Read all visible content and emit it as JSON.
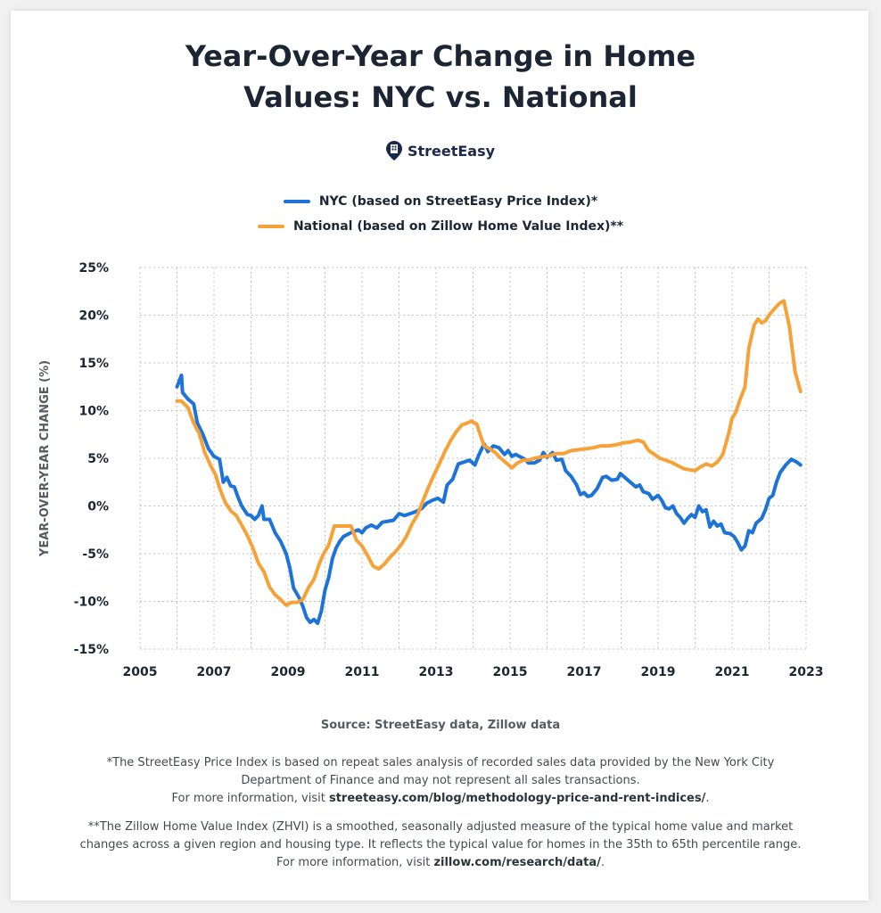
{
  "header": {
    "title_line1": "Year-Over-Year Change in Home",
    "title_line2": "Values: NYC vs. National",
    "brand": "StreetEasy"
  },
  "legend": [
    {
      "label": "NYC (based on StreetEasy Price Index)*",
      "color": "#1e73d8"
    },
    {
      "label": "National (based on Zillow Home Value Index)**",
      "color": "#f7a238"
    }
  ],
  "footer": {
    "source": "Source: StreetEasy data, Zillow data",
    "note1_line1": "*The StreetEasy Price Index is based on repeat sales analysis of recorded sales data provided by the New York City",
    "note1_line2": "Department of Finance and may not represent all sales transactions.",
    "note1_prefix": "For more information, visit ",
    "note1_link": "streeteasy.com/blog/methodology-price-and-rent-indices/",
    "note1_suffix": ".",
    "note2_line1": "**The Zillow Home Value Index (ZHVI) is a smoothed, seasonally adjusted measure of the typical home value and market",
    "note2_line2": "changes across a given region and housing type. It reflects the typical value for homes in the 35th to 65th percentile range.",
    "note2_prefix": "For more information, visit ",
    "note2_link": "zillow.com/research/data/",
    "note2_suffix": "."
  },
  "chart_data": {
    "type": "line",
    "title": "Year-Over-Year Change in Home Values: NYC vs. National",
    "ylabel": "YEAR-OVER-YEAR CHANGE (%)",
    "xlabel": "",
    "xlim": [
      2005,
      2023
    ],
    "ylim": [
      -15,
      25
    ],
    "x_ticks": [
      2005,
      2007,
      2009,
      2011,
      2013,
      2015,
      2017,
      2019,
      2021,
      2023
    ],
    "y_ticks": [
      -15,
      -10,
      -5,
      0,
      5,
      10,
      15,
      20,
      25
    ],
    "y_tick_labels": [
      "-15%",
      "-10%",
      "-5%",
      "0%",
      "5%",
      "10%",
      "15%",
      "20%",
      "25%"
    ],
    "grid": true,
    "legend_position": "top-center",
    "series": [
      {
        "name": "NYC (based on StreetEasy Price Index)*",
        "color": "#1e73d8",
        "points": [
          [
            2006.0,
            12.5
          ],
          [
            2006.12,
            13.7
          ],
          [
            2006.15,
            11.9
          ],
          [
            2006.3,
            11.2
          ],
          [
            2006.45,
            10.7
          ],
          [
            2006.55,
            8.7
          ],
          [
            2006.7,
            7.5
          ],
          [
            2006.85,
            6.0
          ],
          [
            2007.0,
            5.2
          ],
          [
            2007.15,
            4.9
          ],
          [
            2007.25,
            2.5
          ],
          [
            2007.35,
            3.0
          ],
          [
            2007.45,
            2.1
          ],
          [
            2007.55,
            2.0
          ],
          [
            2007.65,
            0.9
          ],
          [
            2007.75,
            0.0
          ],
          [
            2007.9,
            -0.9
          ],
          [
            2008.0,
            -1.0
          ],
          [
            2008.1,
            -1.4
          ],
          [
            2008.2,
            -1.0
          ],
          [
            2008.3,
            0.0
          ],
          [
            2008.35,
            -1.4
          ],
          [
            2008.5,
            -1.4
          ],
          [
            2008.65,
            -2.8
          ],
          [
            2008.8,
            -3.7
          ],
          [
            2008.95,
            -5.0
          ],
          [
            2009.05,
            -6.5
          ],
          [
            2009.15,
            -8.6
          ],
          [
            2009.3,
            -9.6
          ],
          [
            2009.4,
            -10.5
          ],
          [
            2009.5,
            -11.7
          ],
          [
            2009.6,
            -12.2
          ],
          [
            2009.7,
            -11.9
          ],
          [
            2009.8,
            -12.3
          ],
          [
            2009.9,
            -11.0
          ],
          [
            2010.0,
            -8.8
          ],
          [
            2010.1,
            -7.5
          ],
          [
            2010.2,
            -5.5
          ],
          [
            2010.3,
            -4.4
          ],
          [
            2010.4,
            -3.7
          ],
          [
            2010.5,
            -3.2
          ],
          [
            2010.6,
            -3.0
          ],
          [
            2010.75,
            -2.7
          ],
          [
            2010.9,
            -2.5
          ],
          [
            2011.0,
            -2.8
          ],
          [
            2011.1,
            -2.3
          ],
          [
            2011.25,
            -2.0
          ],
          [
            2011.4,
            -2.3
          ],
          [
            2011.55,
            -1.7
          ],
          [
            2011.7,
            -1.6
          ],
          [
            2011.85,
            -1.5
          ],
          [
            2012.0,
            -0.8
          ],
          [
            2012.15,
            -1.0
          ],
          [
            2012.3,
            -0.8
          ],
          [
            2012.45,
            -0.6
          ],
          [
            2012.6,
            -0.3
          ],
          [
            2012.75,
            0.3
          ],
          [
            2012.9,
            0.6
          ],
          [
            2013.05,
            0.8
          ],
          [
            2013.2,
            0.4
          ],
          [
            2013.3,
            2.2
          ],
          [
            2013.45,
            2.8
          ],
          [
            2013.6,
            4.4
          ],
          [
            2013.75,
            4.6
          ],
          [
            2013.9,
            4.8
          ],
          [
            2014.05,
            4.3
          ],
          [
            2014.15,
            5.3
          ],
          [
            2014.3,
            6.5
          ],
          [
            2014.4,
            5.7
          ],
          [
            2014.55,
            6.3
          ],
          [
            2014.7,
            6.1
          ],
          [
            2014.85,
            5.4
          ],
          [
            2014.95,
            5.8
          ],
          [
            2015.05,
            5.2
          ],
          [
            2015.15,
            5.4
          ],
          [
            2015.3,
            5.1
          ],
          [
            2015.4,
            4.9
          ],
          [
            2015.5,
            4.5
          ],
          [
            2015.65,
            4.5
          ],
          [
            2015.8,
            4.8
          ],
          [
            2015.9,
            5.6
          ],
          [
            2016.0,
            5.1
          ],
          [
            2016.15,
            5.6
          ],
          [
            2016.25,
            4.8
          ],
          [
            2016.4,
            4.9
          ],
          [
            2016.5,
            3.7
          ],
          [
            2016.65,
            3.1
          ],
          [
            2016.8,
            2.2
          ],
          [
            2016.9,
            1.2
          ],
          [
            2017.0,
            1.4
          ],
          [
            2017.1,
            1.0
          ],
          [
            2017.2,
            1.1
          ],
          [
            2017.35,
            1.8
          ],
          [
            2017.5,
            3.0
          ],
          [
            2017.6,
            3.1
          ],
          [
            2017.75,
            2.7
          ],
          [
            2017.9,
            2.8
          ],
          [
            2017.98,
            3.4
          ],
          [
            2018.1,
            3.0
          ],
          [
            2018.25,
            2.5
          ],
          [
            2018.4,
            2.0
          ],
          [
            2018.5,
            2.2
          ],
          [
            2018.6,
            1.5
          ],
          [
            2018.75,
            1.3
          ],
          [
            2018.85,
            0.7
          ],
          [
            2019.0,
            1.1
          ],
          [
            2019.1,
            0.6
          ],
          [
            2019.2,
            -0.2
          ],
          [
            2019.3,
            -0.3
          ],
          [
            2019.4,
            0.0
          ],
          [
            2019.5,
            -0.8
          ],
          [
            2019.6,
            -1.2
          ],
          [
            2019.7,
            -1.8
          ],
          [
            2019.8,
            -1.3
          ],
          [
            2019.9,
            -0.9
          ],
          [
            2020.0,
            -1.2
          ],
          [
            2020.1,
            0.0
          ],
          [
            2020.2,
            -0.6
          ],
          [
            2020.3,
            -0.4
          ],
          [
            2020.4,
            -2.2
          ],
          [
            2020.5,
            -1.6
          ],
          [
            2020.6,
            -2.1
          ],
          [
            2020.7,
            -1.9
          ],
          [
            2020.8,
            -2.8
          ],
          [
            2020.95,
            -2.9
          ],
          [
            2021.05,
            -3.2
          ],
          [
            2021.15,
            -3.8
          ],
          [
            2021.25,
            -4.6
          ],
          [
            2021.35,
            -4.2
          ],
          [
            2021.45,
            -2.6
          ],
          [
            2021.55,
            -2.8
          ],
          [
            2021.65,
            -1.8
          ],
          [
            2021.8,
            -1.3
          ],
          [
            2021.9,
            -0.4
          ],
          [
            2022.0,
            0.8
          ],
          [
            2022.1,
            1.1
          ],
          [
            2022.2,
            2.5
          ],
          [
            2022.3,
            3.5
          ],
          [
            2022.45,
            4.3
          ],
          [
            2022.6,
            4.9
          ],
          [
            2022.75,
            4.6
          ],
          [
            2022.85,
            4.3
          ]
        ]
      },
      {
        "name": "National (based on Zillow Home Value Index)**",
        "color": "#f7a238",
        "points": [
          [
            2006.0,
            11.0
          ],
          [
            2006.12,
            11.0
          ],
          [
            2006.3,
            10.3
          ],
          [
            2006.45,
            8.7
          ],
          [
            2006.6,
            7.6
          ],
          [
            2006.75,
            5.6
          ],
          [
            2006.9,
            4.3
          ],
          [
            2007.05,
            3.2
          ],
          [
            2007.15,
            1.9
          ],
          [
            2007.3,
            0.4
          ],
          [
            2007.45,
            -0.5
          ],
          [
            2007.6,
            -1.0
          ],
          [
            2007.75,
            -2.0
          ],
          [
            2007.9,
            -3.1
          ],
          [
            2008.05,
            -4.4
          ],
          [
            2008.2,
            -6.0
          ],
          [
            2008.35,
            -6.9
          ],
          [
            2008.5,
            -8.5
          ],
          [
            2008.65,
            -9.3
          ],
          [
            2008.8,
            -9.8
          ],
          [
            2008.95,
            -10.4
          ],
          [
            2009.1,
            -10.1
          ],
          [
            2009.25,
            -10.1
          ],
          [
            2009.4,
            -9.8
          ],
          [
            2009.55,
            -8.6
          ],
          [
            2009.7,
            -7.7
          ],
          [
            2009.85,
            -6.0
          ],
          [
            2009.95,
            -5.1
          ],
          [
            2010.1,
            -4.1
          ],
          [
            2010.25,
            -2.1
          ],
          [
            2010.4,
            -2.1
          ],
          [
            2010.55,
            -2.1
          ],
          [
            2010.7,
            -2.1
          ],
          [
            2010.85,
            -3.6
          ],
          [
            2011.0,
            -4.2
          ],
          [
            2011.15,
            -5.2
          ],
          [
            2011.3,
            -6.3
          ],
          [
            2011.45,
            -6.6
          ],
          [
            2011.6,
            -6.1
          ],
          [
            2011.75,
            -5.4
          ],
          [
            2011.9,
            -4.8
          ],
          [
            2012.05,
            -4.1
          ],
          [
            2012.2,
            -3.2
          ],
          [
            2012.35,
            -1.9
          ],
          [
            2012.5,
            -0.9
          ],
          [
            2012.65,
            0.6
          ],
          [
            2012.8,
            2.0
          ],
          [
            2012.95,
            3.3
          ],
          [
            2013.1,
            4.5
          ],
          [
            2013.25,
            5.8
          ],
          [
            2013.4,
            6.9
          ],
          [
            2013.55,
            7.8
          ],
          [
            2013.7,
            8.5
          ],
          [
            2013.85,
            8.7
          ],
          [
            2013.95,
            8.9
          ],
          [
            2014.1,
            8.6
          ],
          [
            2014.2,
            7.4
          ],
          [
            2014.3,
            6.3
          ],
          [
            2014.45,
            6.0
          ],
          [
            2014.6,
            5.6
          ],
          [
            2014.75,
            5.0
          ],
          [
            2014.9,
            4.5
          ],
          [
            2015.05,
            4.0
          ],
          [
            2015.2,
            4.5
          ],
          [
            2015.35,
            4.8
          ],
          [
            2015.5,
            4.8
          ],
          [
            2015.65,
            5.0
          ],
          [
            2015.8,
            5.1
          ],
          [
            2015.95,
            5.2
          ],
          [
            2016.1,
            5.3
          ],
          [
            2016.25,
            5.5
          ],
          [
            2016.45,
            5.5
          ],
          [
            2016.65,
            5.8
          ],
          [
            2016.85,
            5.9
          ],
          [
            2017.05,
            6.0
          ],
          [
            2017.25,
            6.1
          ],
          [
            2017.45,
            6.3
          ],
          [
            2017.65,
            6.3
          ],
          [
            2017.85,
            6.4
          ],
          [
            2018.05,
            6.6
          ],
          [
            2018.25,
            6.7
          ],
          [
            2018.45,
            6.9
          ],
          [
            2018.6,
            6.7
          ],
          [
            2018.75,
            5.8
          ],
          [
            2018.9,
            5.4
          ],
          [
            2019.05,
            5.0
          ],
          [
            2019.2,
            4.8
          ],
          [
            2019.4,
            4.5
          ],
          [
            2019.55,
            4.2
          ],
          [
            2019.7,
            3.9
          ],
          [
            2019.85,
            3.8
          ],
          [
            2020.0,
            3.7
          ],
          [
            2020.15,
            4.1
          ],
          [
            2020.3,
            4.4
          ],
          [
            2020.45,
            4.2
          ],
          [
            2020.6,
            4.6
          ],
          [
            2020.75,
            5.4
          ],
          [
            2020.9,
            7.5
          ],
          [
            2021.0,
            9.2
          ],
          [
            2021.1,
            9.8
          ],
          [
            2021.2,
            11.0
          ],
          [
            2021.35,
            12.5
          ],
          [
            2021.45,
            16.5
          ],
          [
            2021.6,
            19.0
          ],
          [
            2021.7,
            19.6
          ],
          [
            2021.8,
            19.2
          ],
          [
            2021.9,
            19.4
          ],
          [
            2022.0,
            20.0
          ],
          [
            2022.15,
            20.7
          ],
          [
            2022.3,
            21.3
          ],
          [
            2022.4,
            21.5
          ],
          [
            2022.55,
            18.8
          ],
          [
            2022.7,
            14.1
          ],
          [
            2022.85,
            12.0
          ]
        ]
      }
    ]
  }
}
